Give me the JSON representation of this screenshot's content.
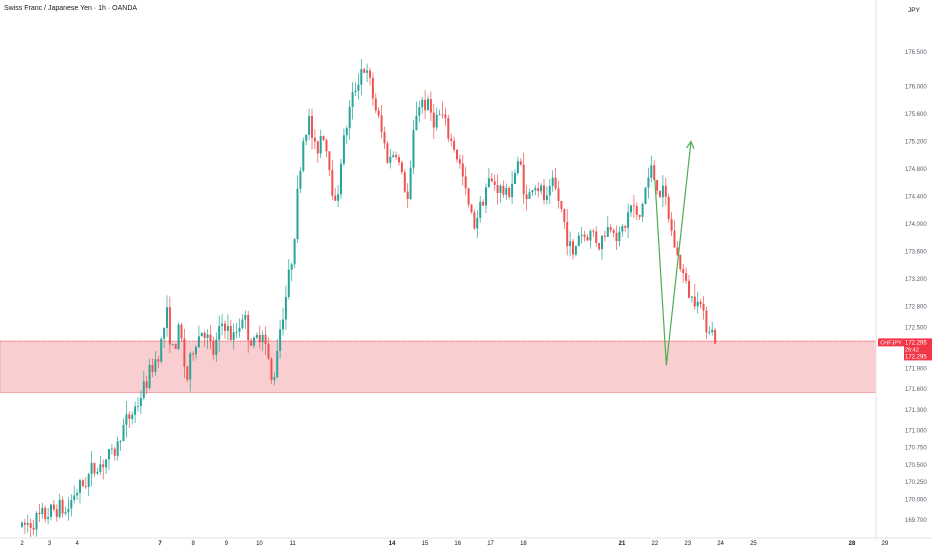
{
  "header": {
    "title": "Swiss Franc / Japanese Yen · 1h · OANDA",
    "currency": "JPY"
  },
  "price_tag": {
    "symbol": "CHFJPY",
    "price": "172.295",
    "countdown": "29:42",
    "price_repeat": "172.295"
  },
  "colors": {
    "up": "#26a69a",
    "down": "#ef5350",
    "zone_fill": "#f9ced0",
    "zone_border": "#f09aa0",
    "projection": "#4caf50",
    "tag": "#f23645",
    "axis_text": "#131722",
    "tick_text": "#555b66"
  },
  "chart_data": {
    "type": "candlestick",
    "symbol": "CHFJPY",
    "timeframe": "1h",
    "source": "OANDA",
    "ylim": [
      169.6,
      176.72
    ],
    "x_tick_labels": [
      "2",
      "3",
      "4",
      "7",
      "8",
      "9",
      "10",
      "11",
      "14",
      "15",
      "16",
      "17",
      "18",
      "21",
      "22",
      "23",
      "24",
      "25",
      "28",
      "29"
    ],
    "x_tick_bold": [
      "7",
      "14",
      "21",
      "28"
    ],
    "y_tick_labels": [
      "176.500",
      "176.000",
      "175.600",
      "175.200",
      "174.800",
      "174.400",
      "174.000",
      "173.600",
      "173.200",
      "172.800",
      "172.500",
      "171.900",
      "171.600",
      "171.300",
      "171.000",
      "170.750",
      "170.500",
      "170.250",
      "170.000",
      "169.700"
    ],
    "y_tick_values": [
      176.5,
      176.0,
      175.6,
      175.2,
      174.8,
      174.4,
      174.0,
      173.6,
      173.2,
      172.8,
      172.5,
      171.9,
      171.6,
      171.3,
      171.0,
      170.75,
      170.5,
      170.25,
      170.0,
      169.7
    ],
    "last_price": 172.295,
    "support_zone": [
      171.55,
      172.3
    ],
    "projection_path": [
      [
        22.0,
        174.65
      ],
      [
        22.35,
        171.95
      ],
      [
        23.1,
        175.2
      ]
    ],
    "price_path": [
      [
        2.0,
        169.6
      ],
      [
        2.5,
        169.7
      ],
      [
        3.0,
        169.8
      ],
      [
        3.3,
        169.9
      ],
      [
        3.6,
        169.8
      ],
      [
        3.9,
        170.1
      ],
      [
        4.2,
        170.2
      ],
      [
        4.5,
        170.4
      ],
      [
        4.8,
        170.5
      ],
      [
        5.1,
        170.6
      ],
      [
        5.4,
        170.7
      ],
      [
        5.6,
        171.0
      ],
      [
        5.9,
        171.2
      ],
      [
        6.2,
        171.4
      ],
      [
        6.5,
        171.7
      ],
      [
        6.8,
        172.0
      ],
      [
        7.0,
        172.2
      ],
      [
        7.2,
        172.7
      ],
      [
        7.4,
        172.1
      ],
      [
        7.6,
        172.5
      ],
      [
        7.8,
        171.7
      ],
      [
        8.0,
        172.2
      ],
      [
        8.3,
        172.5
      ],
      [
        8.6,
        172.1
      ],
      [
        8.9,
        172.6
      ],
      [
        9.2,
        172.3
      ],
      [
        9.5,
        172.7
      ],
      [
        9.8,
        172.2
      ],
      [
        10.1,
        172.5
      ],
      [
        10.4,
        171.6
      ],
      [
        10.55,
        172.3
      ],
      [
        10.7,
        172.7
      ],
      [
        10.85,
        173.1
      ],
      [
        11.0,
        173.6
      ],
      [
        11.15,
        174.4
      ],
      [
        11.3,
        175.2
      ],
      [
        11.5,
        175.5
      ],
      [
        11.7,
        175.0
      ],
      [
        11.9,
        175.4
      ],
      [
        12.1,
        174.9
      ],
      [
        12.3,
        174.2
      ],
      [
        12.5,
        175.1
      ],
      [
        12.7,
        175.6
      ],
      [
        12.9,
        176.0
      ],
      [
        13.1,
        176.3
      ],
      [
        13.3,
        176.1
      ],
      [
        13.5,
        175.7
      ],
      [
        13.7,
        175.3
      ],
      [
        13.9,
        174.9
      ],
      [
        14.1,
        175.1
      ],
      [
        14.3,
        174.7
      ],
      [
        14.5,
        174.3
      ],
      [
        14.7,
        175.6
      ],
      [
        14.9,
        175.8
      ],
      [
        15.1,
        175.7
      ],
      [
        15.3,
        175.5
      ],
      [
        15.5,
        175.6
      ],
      [
        15.7,
        175.3
      ],
      [
        15.9,
        175.1
      ],
      [
        16.1,
        174.8
      ],
      [
        16.3,
        174.3
      ],
      [
        16.5,
        174.0
      ],
      [
        16.7,
        174.3
      ],
      [
        16.9,
        174.6
      ],
      [
        17.1,
        174.6
      ],
      [
        17.3,
        174.5
      ],
      [
        17.5,
        174.4
      ],
      [
        17.7,
        174.7
      ],
      [
        17.9,
        174.9
      ],
      [
        18.1,
        174.3
      ],
      [
        18.3,
        174.6
      ],
      [
        18.5,
        174.5
      ],
      [
        18.7,
        174.3
      ],
      [
        18.9,
        174.6
      ],
      [
        19.1,
        174.3
      ],
      [
        19.3,
        173.9
      ],
      [
        19.5,
        173.5
      ],
      [
        19.7,
        173.9
      ],
      [
        19.9,
        173.8
      ],
      [
        20.1,
        173.9
      ],
      [
        20.3,
        173.7
      ],
      [
        20.5,
        173.9
      ],
      [
        20.7,
        174.0
      ],
      [
        20.9,
        173.8
      ],
      [
        21.1,
        174.0
      ],
      [
        21.3,
        174.3
      ],
      [
        21.5,
        174.0
      ],
      [
        21.7,
        174.5
      ],
      [
        21.9,
        174.8
      ],
      [
        22.1,
        174.5
      ],
      [
        22.3,
        174.4
      ],
      [
        22.5,
        173.9
      ],
      [
        22.7,
        173.5
      ],
      [
        22.9,
        173.2
      ],
      [
        23.1,
        172.9
      ],
      [
        23.3,
        173.0
      ],
      [
        23.5,
        172.6
      ],
      [
        23.7,
        172.5
      ],
      [
        23.85,
        172.295
      ]
    ]
  }
}
